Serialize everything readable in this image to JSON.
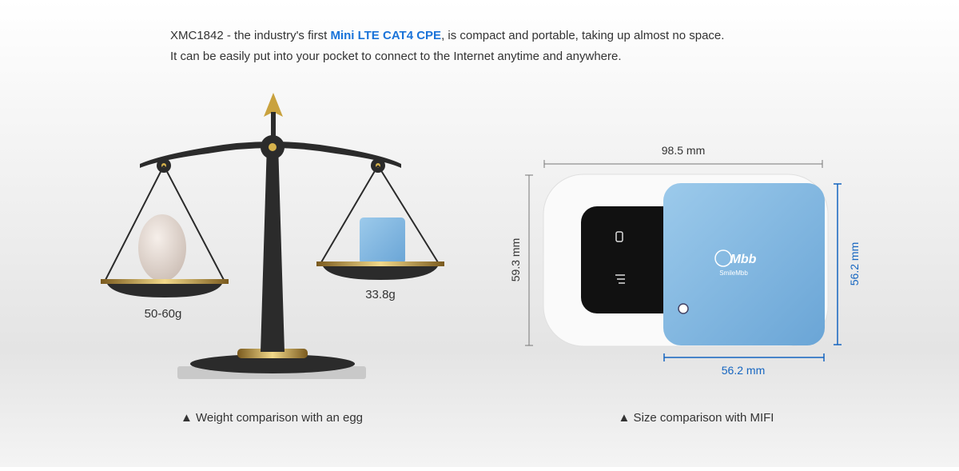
{
  "intro": {
    "line1_start": "XMC1842 - the industry's first ",
    "highlight": "Mini LTE CAT4 CPE",
    "line1_end": ", is compact and portable, taking up almost no space.",
    "line2": "It can be easily put into your pocket to connect to the Internet anytime and anywhere."
  },
  "weight": {
    "egg": "50-60g",
    "device": "33.8g",
    "caption": "▲ Weight comparison with an egg"
  },
  "size": {
    "mifi_width": "98.5 mm",
    "mifi_height": "59.3 mm",
    "device_height": "56.2 mm",
    "device_width": "56.2 mm",
    "caption": "▲ Size comparison with MIFI"
  },
  "logo": {
    "mark": "Mbb",
    "name": "SmileMbb"
  }
}
